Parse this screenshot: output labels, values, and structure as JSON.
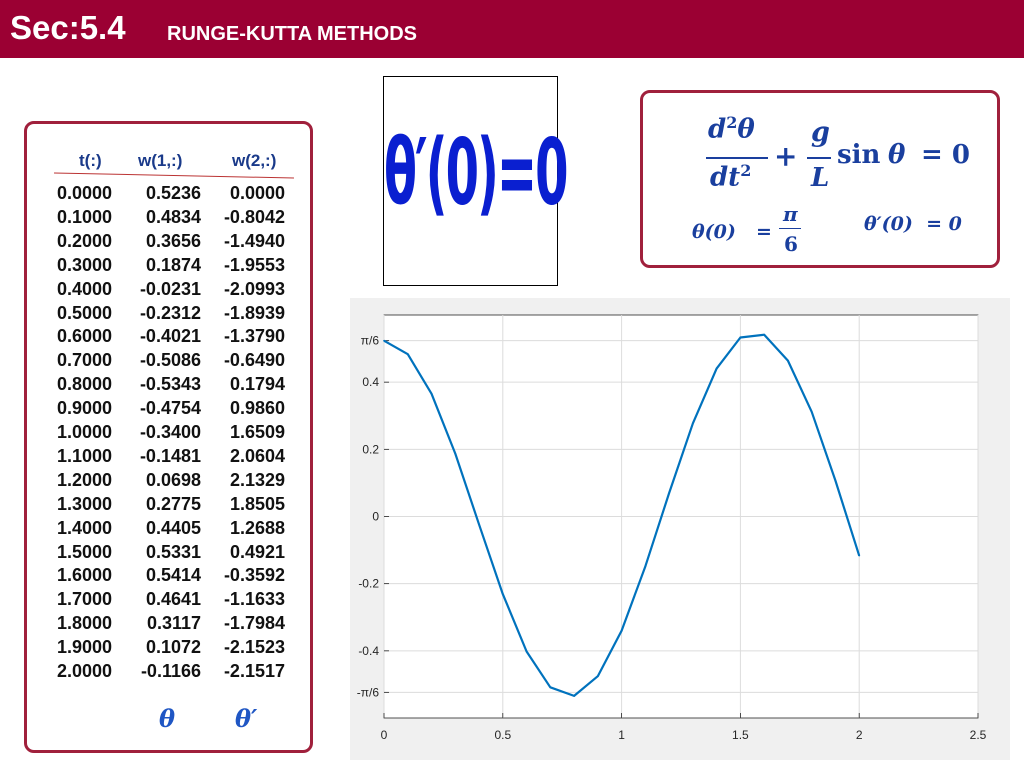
{
  "header": {
    "section": "Sec:5.4",
    "title": "RUNGE-KUTTA METHODS"
  },
  "table": {
    "headers": [
      "t(:)",
      "w(1,:)",
      "w(2,:)"
    ],
    "rows": [
      [
        "0.0000",
        "0.5236",
        "0.0000"
      ],
      [
        "0.1000",
        "0.4834",
        "-0.8042"
      ],
      [
        "0.2000",
        "0.3656",
        "-1.4940"
      ],
      [
        "0.3000",
        "0.1874",
        "-1.9553"
      ],
      [
        "0.4000",
        "-0.0231",
        "-2.0993"
      ],
      [
        "0.5000",
        "-0.2312",
        "-1.8939"
      ],
      [
        "0.6000",
        "-0.4021",
        "-1.3790"
      ],
      [
        "0.7000",
        "-0.5086",
        "-0.6490"
      ],
      [
        "0.8000",
        "-0.5343",
        "0.1794"
      ],
      [
        "0.9000",
        "-0.4754",
        "0.9860"
      ],
      [
        "1.0000",
        "-0.3400",
        "1.6509"
      ],
      [
        "1.1000",
        "-0.1481",
        "2.0604"
      ],
      [
        "1.2000",
        "0.0698",
        "2.1329"
      ],
      [
        "1.3000",
        "0.2775",
        "1.8505"
      ],
      [
        "1.4000",
        "0.4405",
        "1.2688"
      ],
      [
        "1.5000",
        "0.5331",
        "0.4921"
      ],
      [
        "1.6000",
        "0.5414",
        "-0.3592"
      ],
      [
        "1.7000",
        "0.4641",
        "-1.1633"
      ],
      [
        "1.8000",
        "0.3117",
        "-1.7984"
      ],
      [
        "1.9000",
        "0.1072",
        "-2.1523"
      ],
      [
        "2.0000",
        "-0.1166",
        "-2.1517"
      ]
    ],
    "col_symbols": [
      "θ",
      "θ′"
    ]
  },
  "initial_condition_image": {
    "text": "θ′(0)=0"
  },
  "equation": {
    "num_d2": "d",
    "num_sup": "2",
    "num_theta": "θ",
    "den_dt": "dt",
    "den_sup": "2",
    "plus": "+",
    "g": "g",
    "L": "L",
    "sin": "sin",
    "theta": "θ",
    "eq_zero": "= 0",
    "ic1_lhs": "θ(0)",
    "ic1_eq": "=",
    "ic1_pi": "π",
    "ic1_six": "6",
    "ic2": "θ′(0)  = 0"
  },
  "chart_data": {
    "type": "line",
    "x": [
      0.0,
      0.1,
      0.2,
      0.3,
      0.4,
      0.5,
      0.6,
      0.7,
      0.8,
      0.9,
      1.0,
      1.1,
      1.2,
      1.3,
      1.4,
      1.5,
      1.6,
      1.7,
      1.8,
      1.9,
      2.0
    ],
    "y": [
      0.5236,
      0.4834,
      0.3656,
      0.1874,
      -0.0231,
      -0.2312,
      -0.4021,
      -0.5086,
      -0.5343,
      -0.4754,
      -0.34,
      -0.1481,
      0.0698,
      0.2775,
      0.4405,
      0.5331,
      0.5414,
      0.4641,
      0.3117,
      0.1072,
      -0.1166
    ],
    "xlim": [
      0,
      2.5
    ],
    "ylim": [
      -0.5236,
      0.5236
    ],
    "x_ticks": [
      0,
      0.5,
      1,
      1.5,
      2,
      2.5
    ],
    "x_tick_labels": [
      "0",
      "0.5",
      "1",
      "1.5",
      "2",
      "2.5"
    ],
    "y_ticks": [
      -0.5236,
      -0.4,
      -0.2,
      0,
      0.2,
      0.4,
      0.5236
    ],
    "y_tick_labels": [
      "-π/6",
      "-0.4",
      "-0.2",
      "0",
      "0.2",
      "0.4",
      "π/6"
    ],
    "grid": true,
    "line_color": "#0072bd"
  }
}
